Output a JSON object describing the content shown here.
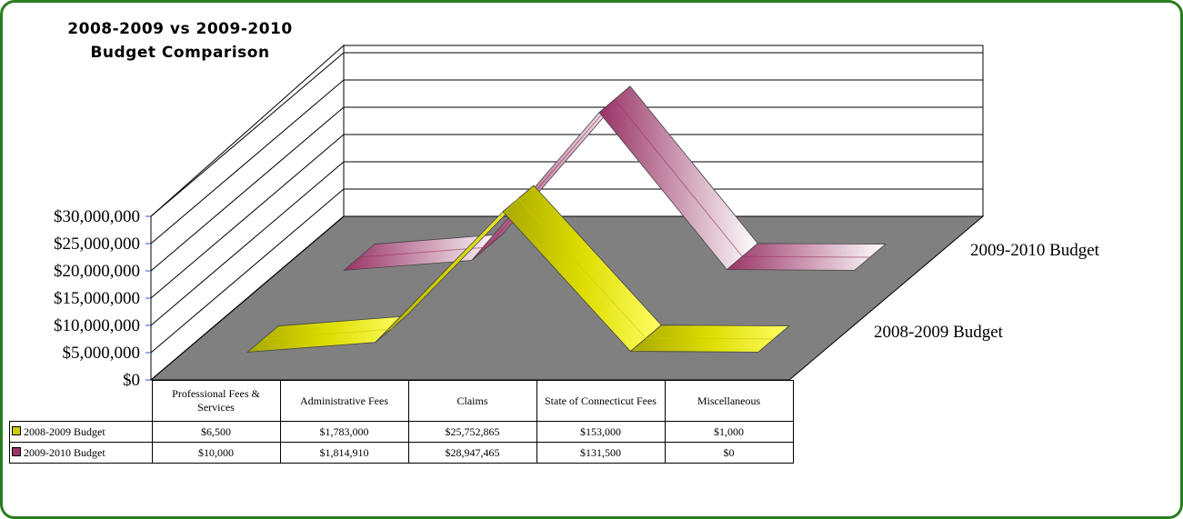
{
  "chart_data": {
    "type": "line3d",
    "title": "2008-2009 vs 2009-2010 Budget Comparison",
    "categories": [
      "Professional Fees & Services",
      "Administrative Fees",
      "Claims",
      "State of Connecticut Fees",
      "Miscellaneous"
    ],
    "series": [
      {
        "name": "2008-2009 Budget",
        "color": "#cccc00",
        "values": [
          6500,
          1783000,
          25752865,
          153000,
          1000
        ],
        "value_labels": [
          "$6,500",
          "$1,783,000",
          "$25,752,865",
          "$153,000",
          "$1,000"
        ]
      },
      {
        "name": "2009-2010 Budget",
        "color": "#993366",
        "values": [
          10000,
          1814910,
          28947465,
          131500,
          0
        ],
        "value_labels": [
          "$10,000",
          "$1,814,910",
          "$28,947,465",
          "$131,500",
          "$0"
        ]
      }
    ],
    "ylim": [
      0,
      30000000
    ],
    "yticks": [
      {
        "value": 0,
        "label": "$0"
      },
      {
        "value": 5000000,
        "label": "$5,000,000"
      },
      {
        "value": 10000000,
        "label": "$10,000,000"
      },
      {
        "value": 15000000,
        "label": "$15,000,000"
      },
      {
        "value": 20000000,
        "label": "$20,000,000"
      },
      {
        "value": 25000000,
        "label": "$25,000,000"
      },
      {
        "value": 30000000,
        "label": "$30,000,000"
      }
    ],
    "grid": true
  }
}
